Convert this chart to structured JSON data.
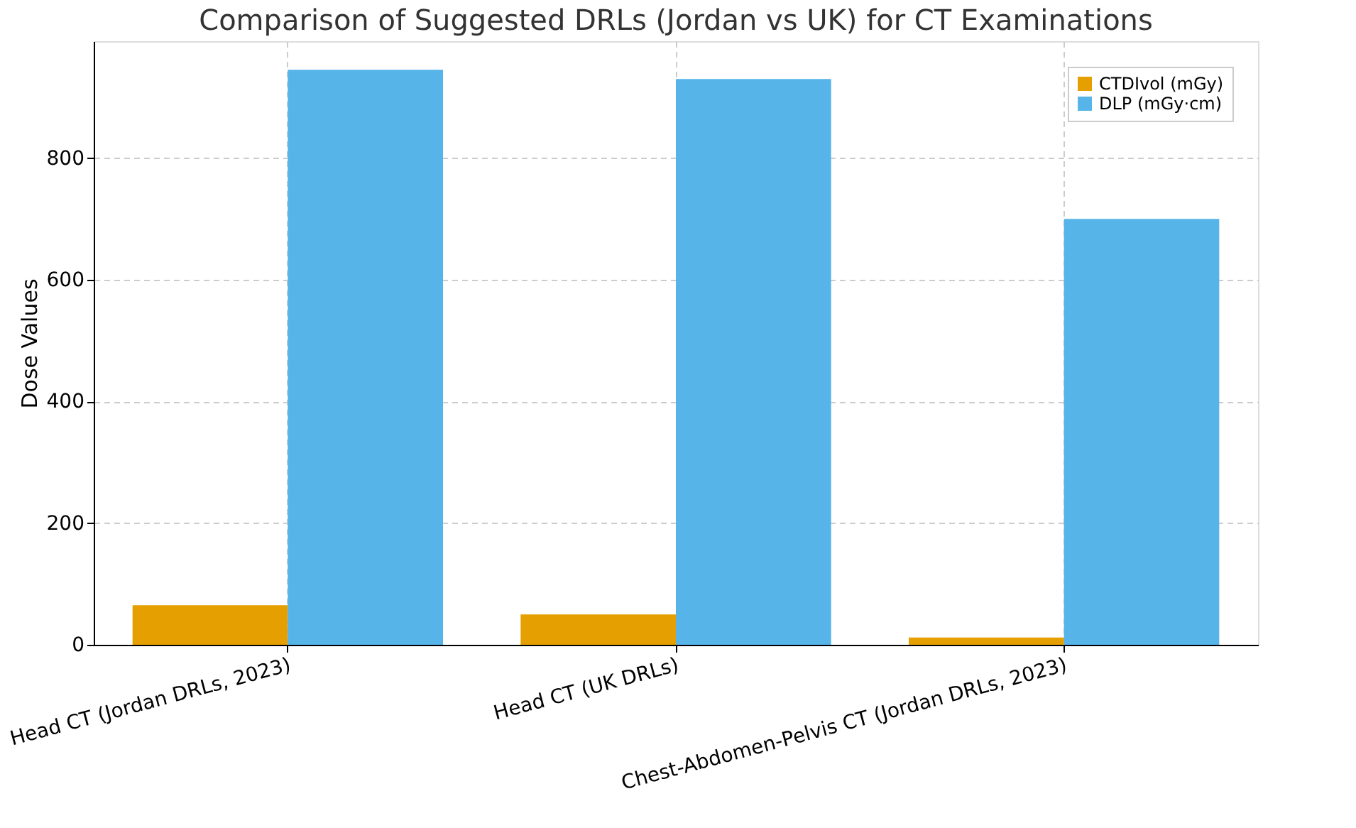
{
  "chart_data": {
    "type": "bar",
    "title": "Comparison of Suggested DRLs (Jordan vs UK) for CT Examinations",
    "ylabel": "Dose Values",
    "categories": [
      "Head CT (Jordan DRLs, 2023)",
      "Head CT (UK DRLs)",
      "Chest-Abdomen-Pelvis CT (Jordan DRLs, 2023)"
    ],
    "series": [
      {
        "name": "CTDIvol (mGy)",
        "color": "#e69f00",
        "values": [
          65,
          50,
          12
        ]
      },
      {
        "name": "DLP (mGy·cm)",
        "color": "#56b4e9",
        "values": [
          945,
          930,
          700
        ]
      }
    ],
    "ylim": [
      0,
      992
    ],
    "yticks": [
      0,
      200,
      400,
      600,
      800
    ],
    "grid": true,
    "legend": "top right"
  }
}
